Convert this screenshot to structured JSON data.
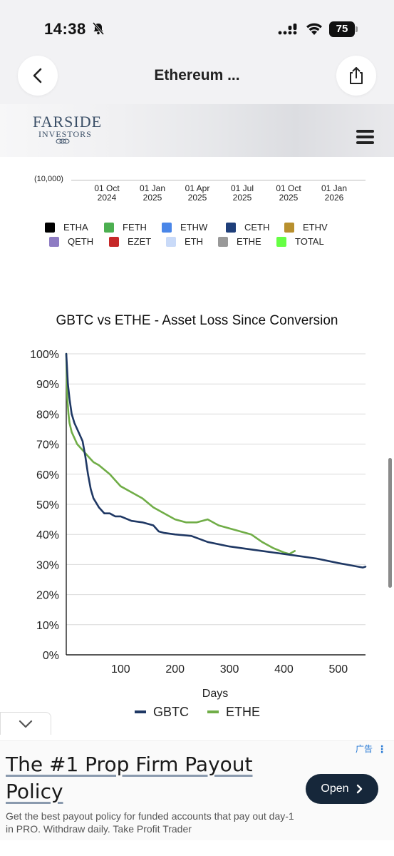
{
  "status": {
    "time": "14:38",
    "battery": "75"
  },
  "nav": {
    "title": "Ethereum ..."
  },
  "site": {
    "logo_line1": "FARSIDE",
    "logo_line2": "INVESTORS"
  },
  "upper_chart": {
    "y_label": "(10,000)",
    "x_ticks": [
      {
        "line1": "01 Oct",
        "line2": "2024"
      },
      {
        "line1": "01 Jan",
        "line2": "2025"
      },
      {
        "line1": "01 Apr",
        "line2": "2025"
      },
      {
        "line1": "01 Jul",
        "line2": "2025"
      },
      {
        "line1": "01 Oct",
        "line2": "2025"
      },
      {
        "line1": "01 Jan",
        "line2": "2026"
      }
    ],
    "legend": [
      {
        "label": "ETHA",
        "color": "#000000"
      },
      {
        "label": "FETH",
        "color": "#4caf50"
      },
      {
        "label": "ETHW",
        "color": "#4a86e8"
      },
      {
        "label": "CETH",
        "color": "#1f3f7a"
      },
      {
        "label": "ETHV",
        "color": "#b8902e"
      },
      {
        "label": "QETH",
        "color": "#8e7cc3"
      },
      {
        "label": "EZET",
        "color": "#c62828"
      },
      {
        "label": "ETH",
        "color": "#c9daf8"
      },
      {
        "label": "ETHE",
        "color": "#999999"
      },
      {
        "label": "TOTAL",
        "color": "#66ff44"
      }
    ]
  },
  "chart_data": {
    "type": "line",
    "title": "GBTC vs ETHE - Asset Loss Since Conversion",
    "xlabel": "Days",
    "ylabel": "",
    "xlim": [
      0,
      550
    ],
    "ylim": [
      0,
      100
    ],
    "x_ticks": [
      100,
      200,
      300,
      400,
      500
    ],
    "y_ticks": [
      "0%",
      "10%",
      "20%",
      "30%",
      "40%",
      "50%",
      "60%",
      "70%",
      "80%",
      "90%",
      "100%"
    ],
    "grid": true,
    "legend_position": "bottom",
    "series": [
      {
        "name": "GBTC",
        "color": "#1f3864",
        "x": [
          0,
          3,
          6,
          10,
          15,
          20,
          25,
          30,
          35,
          40,
          45,
          50,
          60,
          70,
          80,
          90,
          100,
          120,
          140,
          160,
          170,
          180,
          200,
          230,
          260,
          300,
          340,
          380,
          420,
          460,
          500,
          530,
          545,
          550
        ],
        "y": [
          100,
          90,
          85,
          80,
          77,
          75,
          73,
          71,
          66,
          60,
          55,
          52,
          49,
          47,
          47,
          46,
          46,
          44.5,
          44,
          43,
          41,
          40.5,
          40,
          39.5,
          37.5,
          36,
          35,
          34,
          33,
          32,
          30.5,
          29.5,
          29,
          29.3
        ]
      },
      {
        "name": "ETHE",
        "color": "#70ad47",
        "x": [
          0,
          2,
          4,
          6,
          10,
          15,
          20,
          30,
          40,
          50,
          60,
          70,
          80,
          90,
          100,
          120,
          140,
          160,
          180,
          200,
          220,
          240,
          260,
          280,
          300,
          320,
          340,
          360,
          380,
          400,
          410,
          420
        ],
        "y": [
          100,
          85,
          80,
          77,
          74,
          72,
          70,
          68,
          66,
          64,
          63,
          61.5,
          60,
          58,
          56,
          54,
          52,
          49,
          47,
          45,
          44,
          44,
          45,
          43,
          42,
          41,
          40,
          37.5,
          35.5,
          34,
          33.5,
          34.5
        ]
      }
    ]
  },
  "ad": {
    "label": "广告",
    "title": "The #1 Prop Firm Payout Policy",
    "description": "Get the best payout policy for funded accounts that pay out day-1 in PRO. Withdraw daily. Take Profit Trader",
    "button_label": "Open"
  }
}
